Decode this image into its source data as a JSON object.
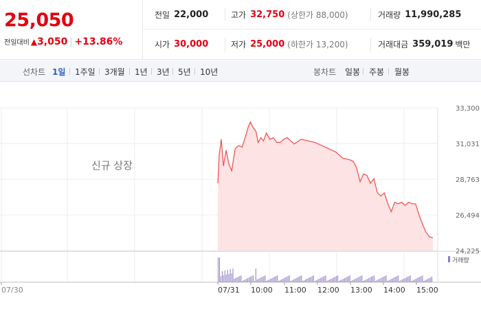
{
  "quote": {
    "price": "25,050",
    "change_label": "전일대비",
    "change_arrow": "▲",
    "change_value": "3,050",
    "change_pct": "+13.86%",
    "prev_close_label": "전일",
    "prev_close": "22,000",
    "open_label": "시가",
    "open": "30,000",
    "high_label": "고가",
    "high": "32,750",
    "upper_limit": "(상한가 88,000)",
    "low_label": "저가",
    "low": "25,000",
    "lower_limit": "(하한가 13,200)",
    "volume_label": "거래량",
    "volume": "11,990,285",
    "trade_value_label": "거래대금",
    "trade_value": "359,019",
    "trade_value_unit": "백만"
  },
  "tabs": {
    "line_header": "선차트",
    "line": [
      "1일",
      "1주일",
      "3개월",
      "1년",
      "3년",
      "5년",
      "10년"
    ],
    "candle_header": "봉차트",
    "candle": [
      "일봉",
      "주봉",
      "월봉"
    ]
  },
  "colors": {
    "up": "#e4000f",
    "line": "#f04a4a",
    "fill": "#fde3e3",
    "volume": "#8f7bc4",
    "active_tab": "#2a5ec4"
  },
  "chart_data": {
    "type": "area",
    "annotation": "신규 상장",
    "volume_legend": "거래량",
    "y_ticks": [
      "33,300",
      "31,031",
      "28,763",
      "26,494",
      "24,225"
    ],
    "ylim": [
      24225,
      33300
    ],
    "x_ticks": [
      "07/30",
      "07/31",
      "10:00",
      "11:00",
      "12:00",
      "13:00",
      "14:00",
      "15:00"
    ],
    "series": [
      {
        "values": [
          [
            0,
            28500
          ],
          [
            2,
            30300
          ],
          [
            5,
            31300
          ],
          [
            8,
            29600
          ],
          [
            12,
            30600
          ],
          [
            16,
            29700
          ],
          [
            20,
            29300
          ],
          [
            25,
            30700
          ],
          [
            30,
            30900
          ],
          [
            35,
            30800
          ],
          [
            40,
            31500
          ],
          [
            44,
            32100
          ],
          [
            47,
            32400
          ],
          [
            50,
            32100
          ],
          [
            55,
            31800
          ],
          [
            58,
            31100
          ],
          [
            62,
            31400
          ],
          [
            66,
            31200
          ],
          [
            70,
            31700
          ],
          [
            75,
            31300
          ],
          [
            80,
            31400
          ],
          [
            85,
            31100
          ],
          [
            90,
            31100
          ],
          [
            95,
            31300
          ],
          [
            100,
            31400
          ],
          [
            110,
            31000
          ],
          [
            120,
            31300
          ],
          [
            130,
            31200
          ],
          [
            140,
            31100
          ],
          [
            150,
            30900
          ],
          [
            160,
            30700
          ],
          [
            170,
            30500
          ],
          [
            180,
            30100
          ],
          [
            190,
            30000
          ],
          [
            195,
            29900
          ],
          [
            200,
            29500
          ],
          [
            205,
            28600
          ],
          [
            210,
            29100
          ],
          [
            215,
            29000
          ],
          [
            220,
            28500
          ],
          [
            225,
            28800
          ],
          [
            230,
            27900
          ],
          [
            235,
            27700
          ],
          [
            240,
            27900
          ],
          [
            245,
            27200
          ],
          [
            250,
            26700
          ],
          [
            255,
            27300
          ],
          [
            260,
            27200
          ],
          [
            265,
            27300
          ],
          [
            270,
            27100
          ],
          [
            275,
            27300
          ],
          [
            280,
            27200
          ],
          [
            285,
            27200
          ],
          [
            290,
            26500
          ],
          [
            295,
            25900
          ],
          [
            300,
            25400
          ],
          [
            305,
            25100
          ],
          [
            310,
            25050
          ]
        ]
      }
    ]
  }
}
